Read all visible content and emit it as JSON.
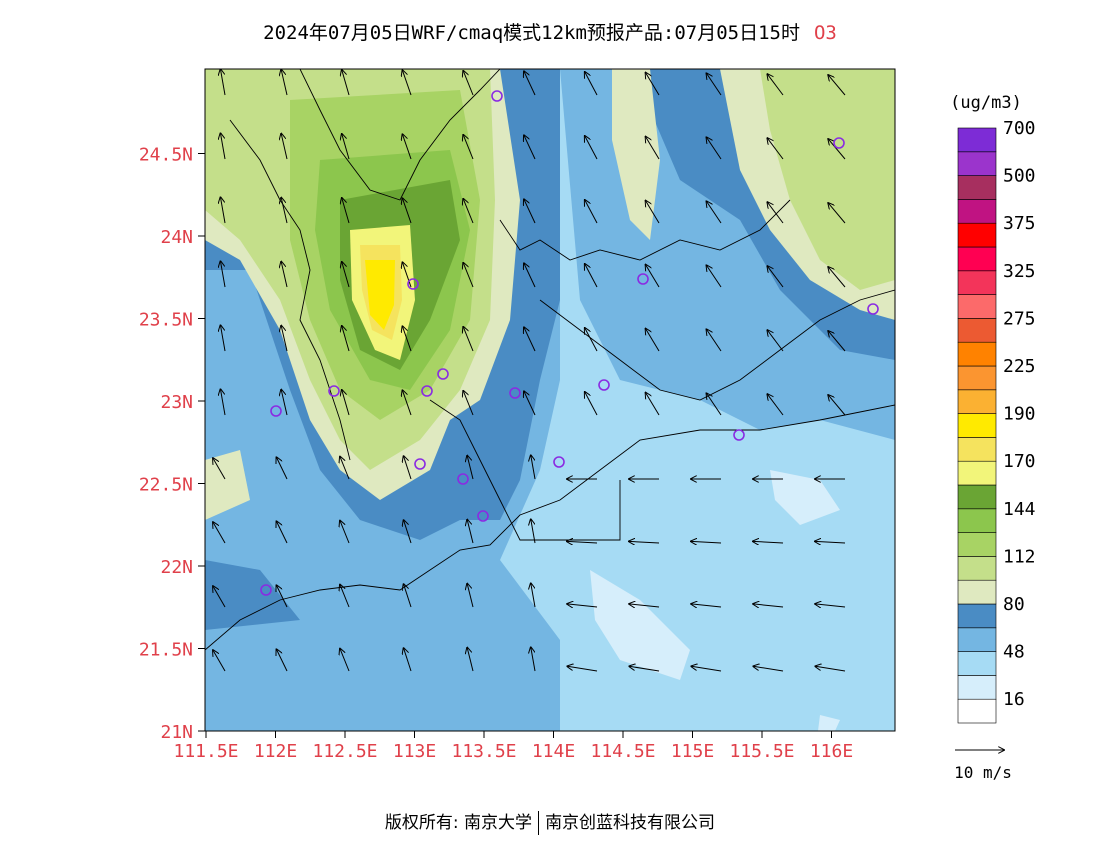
{
  "title": {
    "text": "2024年07月05日WRF/cmaq模式12km预报产品:07月05日15时",
    "pollutant": "O3"
  },
  "map": {
    "lat_ticks": [
      "21N",
      "21.5N",
      "22N",
      "22.5N",
      "23N",
      "23.5N",
      "24N",
      "24.5N"
    ],
    "lon_ticks": [
      "111.5E",
      "112E",
      "112.5E",
      "113E",
      "113.5E",
      "114E",
      "114.5E",
      "115E",
      "115.5E",
      "116E"
    ],
    "axis_label_color": "#e0404a"
  },
  "legend": {
    "unit": "(ug/m3)",
    "colors": [
      "#ffffff",
      "#d6eefb",
      "#a6dbf4",
      "#74b6e2",
      "#4a8cc4",
      "#dfe9c0",
      "#c4df8a",
      "#a8d364",
      "#8cc64d",
      "#6aa534",
      "#f2f57a",
      "#f5e35e",
      "#ffea00",
      "#fbb132",
      "#fb9530",
      "#ff8200",
      "#ec5a32",
      "#fc6a6a",
      "#f3345a",
      "#ff0052",
      "#ff0000",
      "#c01382",
      "#a72f5f",
      "#9b34cc",
      "#7d2cd6"
    ],
    "labels": [
      "16",
      "48",
      "80",
      "112",
      "144",
      "170",
      "190",
      "225",
      "275",
      "325",
      "375",
      "500",
      "700"
    ],
    "wind_ref": "10 m/s"
  },
  "credit": {
    "left": "版权所有: 南京大学",
    "right": "南京创蓝科技有限公司"
  }
}
